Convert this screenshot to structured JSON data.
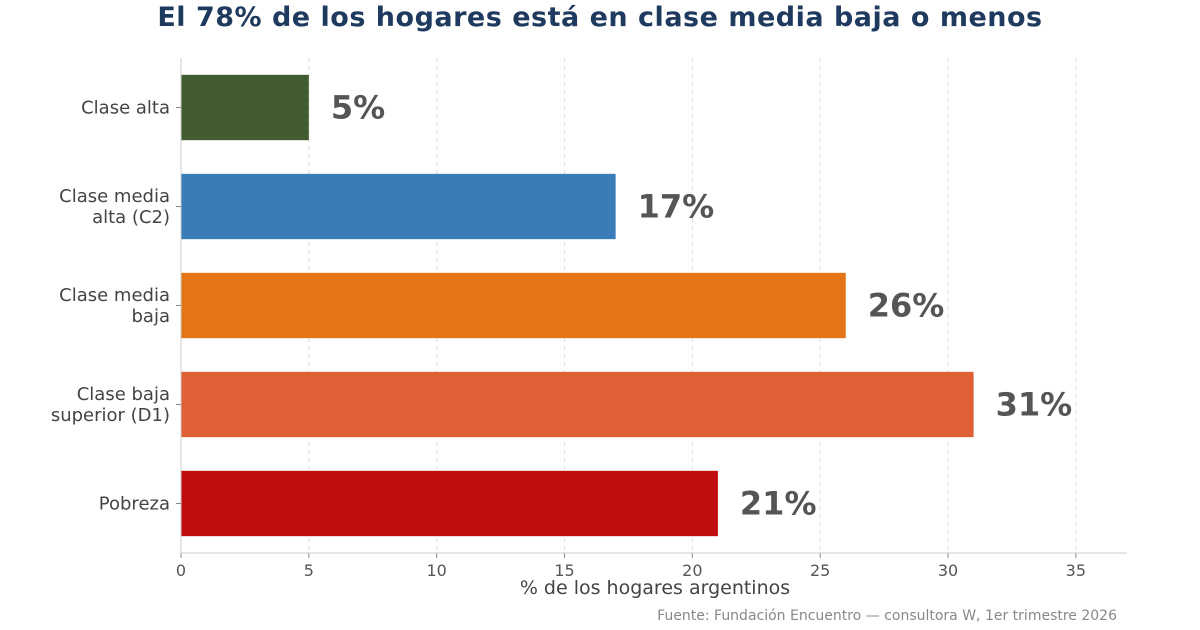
{
  "chart_data": {
    "type": "bar",
    "orientation": "horizontal",
    "title": "El 78% de los hogares está en clase media baja o menos",
    "xlabel": "% de los hogares argentinos",
    "ylabel": "",
    "xlim": [
      0,
      37
    ],
    "xticks": [
      0,
      5,
      10,
      15,
      20,
      25,
      30,
      35
    ],
    "grid": "vertical dashed",
    "categories": [
      [
        "Clase alta"
      ],
      [
        "Clase media",
        "alta (C2)"
      ],
      [
        "Clase media",
        "baja"
      ],
      [
        "Clase baja",
        "superior (D1)"
      ],
      [
        "Pobreza"
      ]
    ],
    "values": [
      5,
      17,
      26,
      31,
      21
    ],
    "data_labels": [
      "5%",
      "17%",
      "26%",
      "31%",
      "21%"
    ],
    "colors": [
      "#425c2f",
      "#3a7cb8",
      "#e37517",
      "#e06035",
      "#c10c0e"
    ],
    "source": "Fuente: Fundación Encuentro — consultora W, 1er trimestre 2026"
  }
}
